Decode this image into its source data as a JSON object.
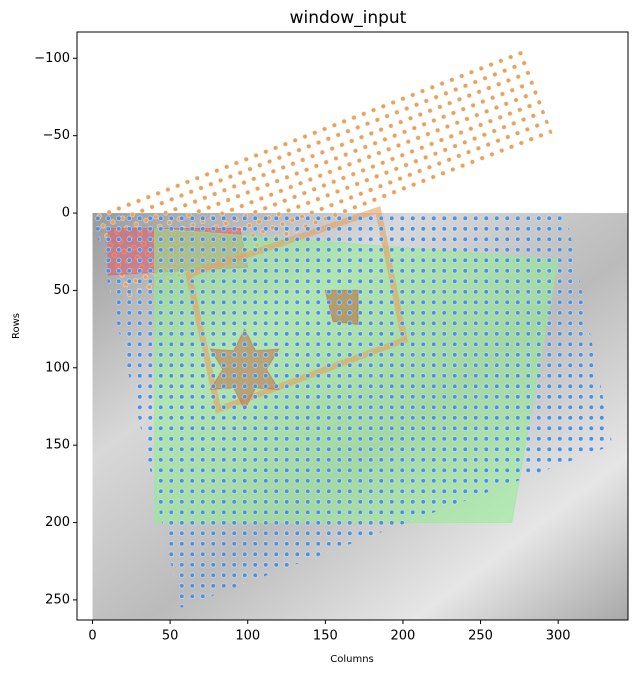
{
  "chart_data": {
    "type": "shapes",
    "title": "window_input",
    "x_label": "Columns",
    "y_label": "Rows",
    "xlim": [
      -10,
      345
    ],
    "ylim": [
      -117,
      263
    ],
    "y_inverted": true,
    "xticks": [
      0,
      50,
      100,
      150,
      200,
      250,
      300
    ],
    "yticks": [
      {
        "value": -100,
        "label": "−100"
      },
      {
        "value": -50,
        "label": "−50"
      },
      0,
      50,
      100,
      150,
      200,
      250
    ],
    "image": {
      "extent": [
        0,
        345,
        0,
        263
      ],
      "colormap": "gray"
    },
    "shapes": [
      {
        "kind": "dot-grid",
        "color": "#e8a05a",
        "x": [
          0,
          276,
          297,
          21
        ],
        "y": [
          0,
          -107,
          -50,
          57
        ]
      },
      {
        "kind": "polygon",
        "color": "#e05a6a",
        "x": [
          10,
          95,
          100,
          10
        ],
        "y": [
          10,
          10,
          35,
          40
        ]
      },
      {
        "kind": "polygon",
        "color": "#90ee90",
        "x": [
          40,
          300,
          270,
          40
        ],
        "y": [
          10,
          30,
          200,
          200
        ]
      },
      {
        "kind": "outline",
        "color": "#e8a05a",
        "x": [
          62,
          184,
          201,
          81
        ],
        "y": [
          40,
          -2,
          82,
          127
        ]
      },
      {
        "kind": "polygon",
        "color": "#b5653a",
        "x": [
          150,
          171,
          171,
          155
        ],
        "y": [
          50,
          50,
          72,
          70
        ]
      },
      {
        "kind": "polygon",
        "color": "#c0704a",
        "x": [
          98,
          105,
          120,
          112,
          120,
          105,
          98,
          91,
          76,
          84,
          76,
          91
        ],
        "y": [
          75,
          89,
          88,
          101,
          114,
          113,
          127,
          113,
          114,
          101,
          88,
          89
        ]
      },
      {
        "kind": "dot-grid",
        "color": "#4a90e2",
        "x": [
          0,
          305,
          335,
          57
        ],
        "y": [
          0,
          0,
          150,
          255
        ]
      }
    ]
  }
}
